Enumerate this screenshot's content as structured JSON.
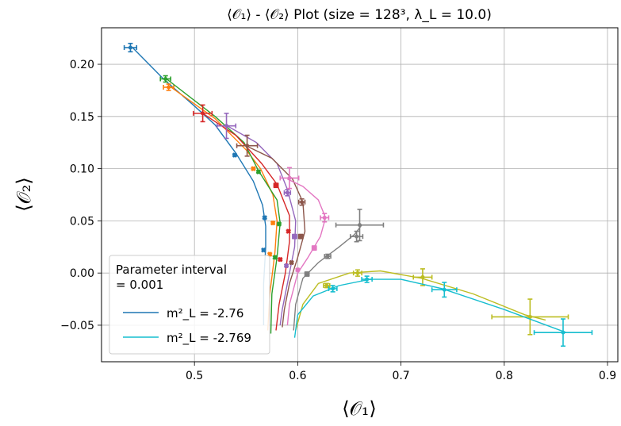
{
  "chart_data": {
    "type": "scatter",
    "title": "⟨𝒪₁⟩ - ⟨𝒪₂⟩ Plot (size = 128³, λ_L = 10.0)",
    "xlabel": "⟨𝒪₁⟩",
    "ylabel": "⟨𝒪₂⟩",
    "xlim": [
      0.41,
      0.91
    ],
    "ylim": [
      -0.085,
      0.235
    ],
    "xticks": [
      0.5,
      0.6,
      0.7,
      0.8,
      0.9
    ],
    "xtick_labels": [
      "0.5",
      "0.6",
      "0.7",
      "0.8",
      "0.9"
    ],
    "yticks": [
      -0.05,
      0.0,
      0.05,
      0.1,
      0.15,
      0.2
    ],
    "ytick_labels": [
      "−0.05",
      "0.00",
      "0.05",
      "0.10",
      "0.15",
      "0.20"
    ],
    "grid": true,
    "legend": {
      "placement": "lower-left",
      "title_line1": "Parameter interval",
      "title_line2": " = 0.001",
      "entries": [
        {
          "label": "m²_L = -2.76",
          "color": "#1f77b4"
        },
        {
          "label": "m²_L = -2.769",
          "color": "#17becf"
        }
      ]
    },
    "series": [
      {
        "name": "m²_L = -2.76",
        "color": "#1f77b4",
        "line": [
          [
            0.44,
            0.216
          ],
          [
            0.47,
            0.186
          ],
          [
            0.5,
            0.16
          ],
          [
            0.52,
            0.142
          ],
          [
            0.54,
            0.115
          ],
          [
            0.557,
            0.088
          ],
          [
            0.566,
            0.065
          ],
          [
            0.569,
            0.045
          ],
          [
            0.569,
            0.025
          ],
          [
            0.567,
            -0.01
          ],
          [
            0.567,
            -0.05
          ]
        ],
        "points": [
          {
            "x": 0.438,
            "y": 0.216,
            "xerr": 0.006,
            "yerr": 0.004
          },
          {
            "x": 0.539,
            "y": 0.113,
            "xerr": 0.001,
            "yerr": 0.001
          },
          {
            "x": 0.568,
            "y": 0.053,
            "xerr": 0.001,
            "yerr": 0.001
          },
          {
            "x": 0.567,
            "y": 0.022,
            "xerr": 0.001,
            "yerr": 0.001
          }
        ]
      },
      {
        "name": "",
        "color": "#ff7f0e",
        "line": [
          [
            0.476,
            0.179
          ],
          [
            0.52,
            0.148
          ],
          [
            0.55,
            0.118
          ],
          [
            0.564,
            0.1
          ],
          [
            0.576,
            0.075
          ],
          [
            0.58,
            0.05
          ],
          [
            0.578,
            0.02
          ],
          [
            0.573,
            -0.02
          ],
          [
            0.571,
            -0.055
          ]
        ],
        "points": [
          {
            "x": 0.475,
            "y": 0.178,
            "xerr": 0.005,
            "yerr": 0.003
          },
          {
            "x": 0.557,
            "y": 0.1,
            "xerr": 0.001,
            "yerr": 0.001
          },
          {
            "x": 0.576,
            "y": 0.048,
            "xerr": 0.001,
            "yerr": 0.001
          },
          {
            "x": 0.573,
            "y": 0.018,
            "xerr": 0.001,
            "yerr": 0.001
          }
        ]
      },
      {
        "name": "",
        "color": "#2ca02c",
        "line": [
          [
            0.473,
            0.186
          ],
          [
            0.52,
            0.15
          ],
          [
            0.548,
            0.125
          ],
          [
            0.562,
            0.098
          ],
          [
            0.58,
            0.07
          ],
          [
            0.583,
            0.048
          ],
          [
            0.58,
            0.015
          ],
          [
            0.575,
            -0.02
          ],
          [
            0.574,
            -0.058
          ]
        ],
        "points": [
          {
            "x": 0.472,
            "y": 0.186,
            "xerr": 0.005,
            "yerr": 0.003
          },
          {
            "x": 0.562,
            "y": 0.097,
            "xerr": 0.001,
            "yerr": 0.001
          },
          {
            "x": 0.582,
            "y": 0.047,
            "xerr": 0.001,
            "yerr": 0.001
          },
          {
            "x": 0.578,
            "y": 0.015,
            "xerr": 0.001,
            "yerr": 0.001
          }
        ]
      },
      {
        "name": "",
        "color": "#d62728",
        "line": [
          [
            0.508,
            0.153
          ],
          [
            0.54,
            0.132
          ],
          [
            0.565,
            0.105
          ],
          [
            0.58,
            0.085
          ],
          [
            0.592,
            0.055
          ],
          [
            0.592,
            0.03
          ],
          [
            0.588,
            0.0
          ],
          [
            0.582,
            -0.03
          ],
          [
            0.579,
            -0.055
          ]
        ],
        "points": [
          {
            "x": 0.508,
            "y": 0.153,
            "xerr": 0.009,
            "yerr": 0.008
          },
          {
            "x": 0.579,
            "y": 0.084,
            "xerr": 0.002,
            "yerr": 0.002
          },
          {
            "x": 0.591,
            "y": 0.04,
            "xerr": 0.001,
            "yerr": 0.001
          },
          {
            "x": 0.583,
            "y": 0.013,
            "xerr": 0.001,
            "yerr": 0.001
          }
        ]
      },
      {
        "name": "",
        "color": "#9467bd",
        "line": [
          [
            0.53,
            0.142
          ],
          [
            0.56,
            0.125
          ],
          [
            0.58,
            0.105
          ],
          [
            0.59,
            0.08
          ],
          [
            0.598,
            0.05
          ],
          [
            0.597,
            0.025
          ],
          [
            0.59,
            -0.01
          ],
          [
            0.585,
            -0.035
          ],
          [
            0.583,
            -0.05
          ]
        ],
        "points": [
          {
            "x": 0.531,
            "y": 0.141,
            "xerr": 0.009,
            "yerr": 0.012
          },
          {
            "x": 0.59,
            "y": 0.077,
            "xerr": 0.003,
            "yerr": 0.003
          },
          {
            "x": 0.597,
            "y": 0.035,
            "xerr": 0.002,
            "yerr": 0.002
          },
          {
            "x": 0.589,
            "y": 0.007,
            "xerr": 0.001,
            "yerr": 0.001
          }
        ]
      },
      {
        "name": "",
        "color": "#8c564b",
        "line": [
          [
            0.55,
            0.122
          ],
          [
            0.575,
            0.11
          ],
          [
            0.595,
            0.09
          ],
          [
            0.605,
            0.068
          ],
          [
            0.607,
            0.04
          ],
          [
            0.6,
            0.015
          ],
          [
            0.592,
            -0.01
          ],
          [
            0.587,
            -0.035
          ],
          [
            0.585,
            -0.052
          ]
        ],
        "points": [
          {
            "x": 0.551,
            "y": 0.122,
            "xerr": 0.01,
            "yerr": 0.01
          },
          {
            "x": 0.604,
            "y": 0.068,
            "xerr": 0.003,
            "yerr": 0.003
          },
          {
            "x": 0.603,
            "y": 0.035,
            "xerr": 0.002,
            "yerr": 0.002
          },
          {
            "x": 0.594,
            "y": 0.01,
            "xerr": 0.001,
            "yerr": 0.001
          }
        ]
      },
      {
        "name": "",
        "color": "#e377c2",
        "line": [
          [
            0.59,
            0.09
          ],
          [
            0.605,
            0.083
          ],
          [
            0.62,
            0.07
          ],
          [
            0.627,
            0.053
          ],
          [
            0.622,
            0.035
          ],
          [
            0.61,
            0.015
          ],
          [
            0.6,
            0.0
          ],
          [
            0.592,
            -0.03
          ],
          [
            0.59,
            -0.05
          ]
        ],
        "points": [
          {
            "x": 0.592,
            "y": 0.091,
            "xerr": 0.009,
            "yerr": 0.01
          },
          {
            "x": 0.626,
            "y": 0.053,
            "xerr": 0.004,
            "yerr": 0.004
          },
          {
            "x": 0.616,
            "y": 0.024,
            "xerr": 0.002,
            "yerr": 0.002
          },
          {
            "x": 0.6,
            "y": 0.003,
            "xerr": 0.001,
            "yerr": 0.001
          }
        ]
      },
      {
        "name": "",
        "color": "#7f7f7f",
        "line": [
          [
            0.662,
            0.046
          ],
          [
            0.655,
            0.037
          ],
          [
            0.64,
            0.025
          ],
          [
            0.62,
            0.01
          ],
          [
            0.605,
            -0.005
          ],
          [
            0.598,
            -0.03
          ],
          [
            0.596,
            -0.055
          ]
        ],
        "points": [
          {
            "x": 0.66,
            "y": 0.046,
            "xerr": 0.023,
            "yerr": 0.015
          },
          {
            "x": 0.657,
            "y": 0.035,
            "xerr": 0.006,
            "yerr": 0.005
          },
          {
            "x": 0.629,
            "y": 0.016,
            "xerr": 0.003,
            "yerr": 0.002
          },
          {
            "x": 0.609,
            "y": -0.001,
            "xerr": 0.002,
            "yerr": 0.002
          }
        ]
      },
      {
        "name": "",
        "color": "#bcbd22",
        "line": [
          [
            0.598,
            -0.055
          ],
          [
            0.605,
            -0.03
          ],
          [
            0.62,
            -0.01
          ],
          [
            0.65,
            0.0
          ],
          [
            0.68,
            0.002
          ],
          [
            0.72,
            -0.005
          ],
          [
            0.77,
            -0.02
          ],
          [
            0.82,
            -0.04
          ],
          [
            0.84,
            -0.045
          ]
        ],
        "points": [
          {
            "x": 0.628,
            "y": -0.012,
            "xerr": 0.003,
            "yerr": 0.002
          },
          {
            "x": 0.658,
            "y": 0.0,
            "xerr": 0.004,
            "yerr": 0.003
          },
          {
            "x": 0.721,
            "y": -0.004,
            "xerr": 0.009,
            "yerr": 0.008
          },
          {
            "x": 0.825,
            "y": -0.042,
            "xerr": 0.037,
            "yerr": 0.017
          }
        ]
      },
      {
        "name": "m²_L = -2.769",
        "color": "#17becf",
        "line": [
          [
            0.597,
            -0.062
          ],
          [
            0.6,
            -0.04
          ],
          [
            0.615,
            -0.022
          ],
          [
            0.64,
            -0.012
          ],
          [
            0.67,
            -0.006
          ],
          [
            0.7,
            -0.006
          ],
          [
            0.74,
            -0.015
          ],
          [
            0.8,
            -0.035
          ],
          [
            0.86,
            -0.057
          ]
        ],
        "points": [
          {
            "x": 0.634,
            "y": -0.015,
            "xerr": 0.004,
            "yerr": 0.003
          },
          {
            "x": 0.667,
            "y": -0.006,
            "xerr": 0.005,
            "yerr": 0.003
          },
          {
            "x": 0.742,
            "y": -0.016,
            "xerr": 0.012,
            "yerr": 0.007
          },
          {
            "x": 0.857,
            "y": -0.057,
            "xerr": 0.028,
            "yerr": 0.013
          }
        ]
      }
    ]
  }
}
